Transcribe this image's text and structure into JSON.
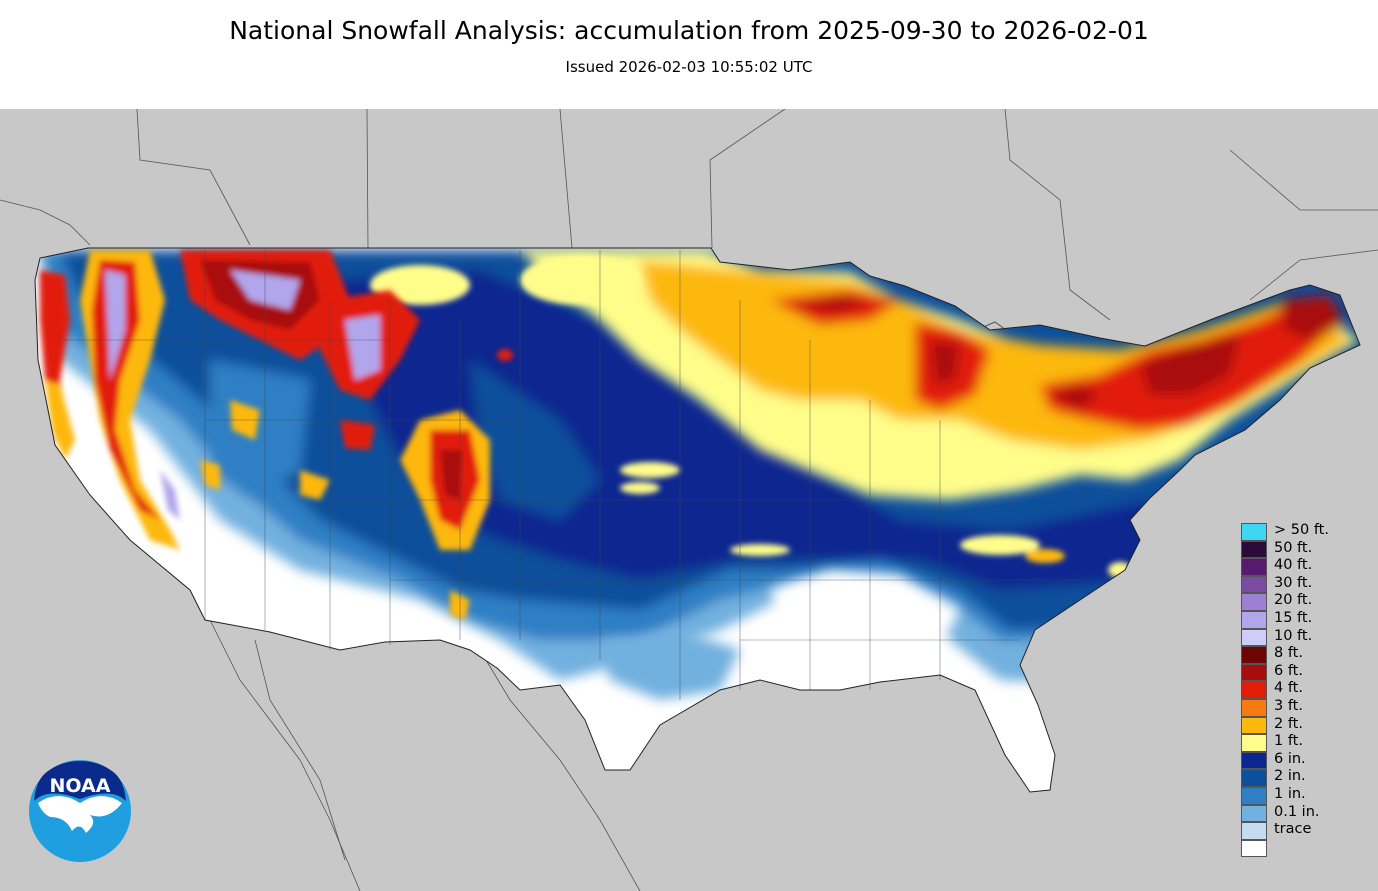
{
  "header": {
    "title": "National Snowfall Analysis: accumulation from 2025-09-30 to 2026-02-01",
    "issued": "Issued 2026-02-03 10:55:02 UTC"
  },
  "logo": {
    "text": "NOAA"
  },
  "legend": {
    "items": [
      {
        "label": "> 50 ft.",
        "color": "#3ed6f2"
      },
      {
        "label": "50 ft.",
        "color": "#2b0b3a"
      },
      {
        "label": "40 ft.",
        "color": "#571a6e"
      },
      {
        "label": "30 ft.",
        "color": "#7b4aa3"
      },
      {
        "label": "20 ft.",
        "color": "#9d80d4"
      },
      {
        "label": "15 ft.",
        "color": "#b1a6ec"
      },
      {
        "label": "10 ft.",
        "color": "#d0ccf8"
      },
      {
        "label": "8 ft.",
        "color": "#6e0505"
      },
      {
        "label": "6 ft.",
        "color": "#a90c0c"
      },
      {
        "label": "4 ft.",
        "color": "#e21e0b"
      },
      {
        "label": "3 ft.",
        "color": "#f57a10"
      },
      {
        "label": "2 ft.",
        "color": "#fdb80d"
      },
      {
        "label": "1 ft.",
        "color": "#fffd8a"
      },
      {
        "label": "6 in.",
        "color": "#0c2690"
      },
      {
        "label": "2 in.",
        "color": "#0c4f9b"
      },
      {
        "label": "1 in.",
        "color": "#2e7fc4"
      },
      {
        "label": "0.1 in.",
        "color": "#72b0df"
      },
      {
        "label": "trace",
        "color": "#c5dcf0"
      },
      {
        "label": "",
        "color": "#ffffff"
      }
    ]
  },
  "map_colors": {
    "background": "#c8c8c8",
    "no_snow": "#ffffff",
    "trace": "#c5dcf0",
    "tenth_inch": "#72b0df",
    "one_inch": "#2e7fc4",
    "two_inch": "#0c4f9b",
    "six_inch": "#0c2690",
    "one_ft": "#fffd8a",
    "two_ft": "#fdb80d",
    "three_ft": "#f57a10",
    "four_ft": "#e21e0b",
    "six_ft": "#a90c0c",
    "eight_ft": "#6e0505",
    "ten_ft": "#d0ccf8",
    "fifteen_ft": "#b1a6ec",
    "twenty_ft": "#9d80d4"
  }
}
